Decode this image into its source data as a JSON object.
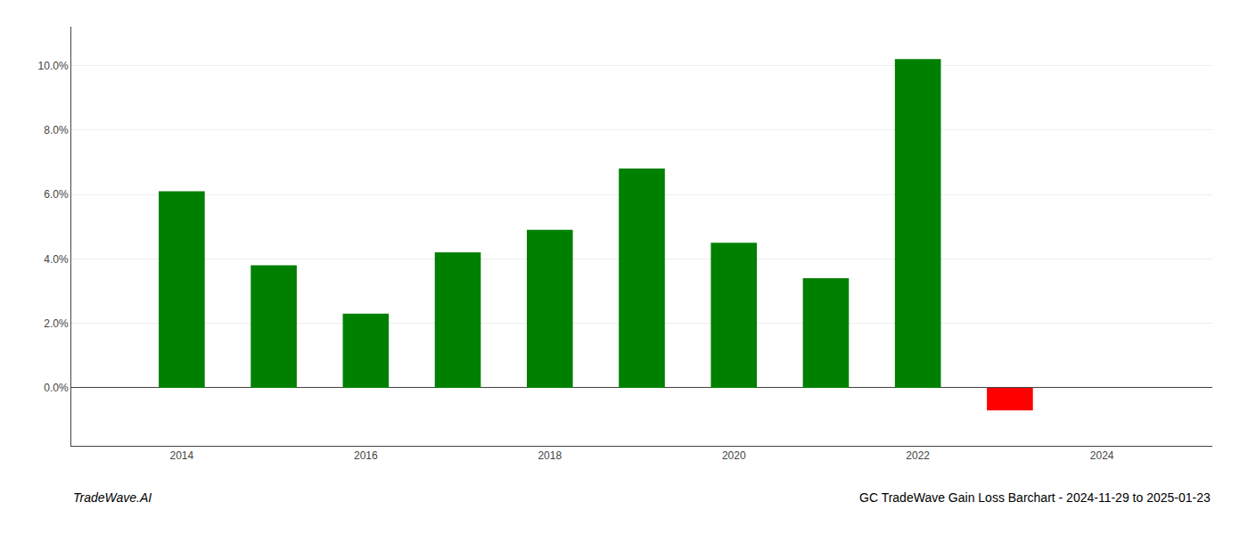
{
  "chart_data": {
    "type": "bar",
    "title": "GC TradeWave Gain Loss Barchart - 2024-11-29 to 2025-01-23",
    "annotations": [
      "TradeWave.AI"
    ],
    "x": [
      2014,
      2015,
      2016,
      2017,
      2018,
      2019,
      2020,
      2021,
      2022,
      2023
    ],
    "values": [
      0.061,
      0.038,
      0.023,
      0.042,
      0.049,
      0.068,
      0.045,
      0.034,
      0.102,
      -0.007
    ],
    "colors": [
      "#008000",
      "#008000",
      "#008000",
      "#008000",
      "#008000",
      "#008000",
      "#008000",
      "#008000",
      "#008000",
      "#ff0000"
    ],
    "xlim": [
      2012.8,
      2025.2
    ],
    "xticks": [
      2014,
      2016,
      2018,
      2020,
      2022,
      2024
    ],
    "ylim": [
      -0.018,
      0.112
    ],
    "yticks": [
      {
        "value": 0.0,
        "label": "0.0%"
      },
      {
        "value": 0.02,
        "label": "2.0%"
      },
      {
        "value": 0.04,
        "label": "4.0%"
      },
      {
        "value": 0.06,
        "label": "6.0%"
      },
      {
        "value": 0.08,
        "label": "8.0%"
      },
      {
        "value": 0.1,
        "label": "10.0%"
      }
    ],
    "grid": true
  }
}
